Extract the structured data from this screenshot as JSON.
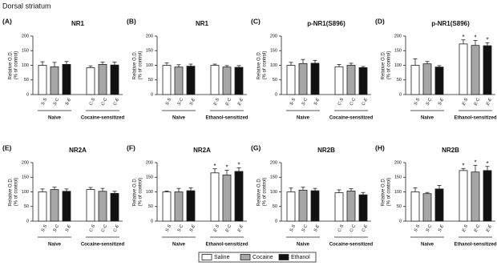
{
  "figure_title": "Dorsal striatum",
  "legend": [
    {
      "name": "Saline",
      "color": "#ffffff"
    },
    {
      "name": "Cocaine",
      "color": "#a6a6a6"
    },
    {
      "name": "Ethanol",
      "color": "#111111"
    }
  ],
  "chart_data": [
    {
      "type": "bar",
      "panel": "(A)",
      "title": "NR1",
      "ylabel": [
        "Relative O.D.",
        "(% of control)"
      ],
      "ylim": [
        0,
        200
      ],
      "yticks": [
        0,
        50,
        100,
        150,
        200
      ],
      "categories": [
        "S-S",
        "S-C",
        "S-E",
        "C-S",
        "C-C",
        "C-E"
      ],
      "groups": [
        "Naive",
        "Cocaine-sensitized"
      ],
      "values": [
        100,
        95,
        103,
        92,
        103,
        101
      ],
      "errors": [
        12,
        15,
        10,
        6,
        8,
        10
      ],
      "annotations": []
    },
    {
      "type": "bar",
      "panel": "(B)",
      "title": "NR1",
      "ylabel": [
        "Relative O.D.",
        "(% of control)"
      ],
      "ylim": [
        0,
        200
      ],
      "yticks": [
        0,
        50,
        100,
        150,
        200
      ],
      "categories": [
        "S-S",
        "S-C",
        "S-E",
        "E-S",
        "E-C",
        "E-E"
      ],
      "groups": [
        "Naive",
        "Ethanol-sensitized"
      ],
      "values": [
        100,
        94,
        97,
        100,
        94,
        93
      ],
      "errors": [
        8,
        8,
        7,
        4,
        5,
        6
      ],
      "annotations": []
    },
    {
      "type": "bar",
      "panel": "(C)",
      "title": "p-NR1(S896)",
      "ylabel": [
        "Relative O.D.",
        "(% of control)"
      ],
      "ylim": [
        0,
        200
      ],
      "yticks": [
        0,
        50,
        100,
        150,
        200
      ],
      "categories": [
        "S-S",
        "S-C",
        "S-E",
        "C-S",
        "C-C",
        "C-E"
      ],
      "groups": [
        "Naive",
        "Cocaine-sensitized"
      ],
      "values": [
        100,
        106,
        107,
        95,
        100,
        92
      ],
      "errors": [
        10,
        14,
        10,
        8,
        7,
        4
      ],
      "annotations": []
    },
    {
      "type": "bar",
      "panel": "(D)",
      "title": "p-NR1(S896)",
      "ylabel": [
        "Relative O.D.",
        "(% of control)"
      ],
      "ylim": [
        0,
        200
      ],
      "yticks": [
        0,
        50,
        100,
        150,
        200
      ],
      "categories": [
        "S-S",
        "S-C",
        "S-E",
        "E-S",
        "E-C",
        "E-E"
      ],
      "groups": [
        "Naive",
        "Ethanol-sensitized"
      ],
      "values": [
        100,
        105,
        94,
        173,
        168,
        167
      ],
      "errors": [
        22,
        8,
        5,
        14,
        17,
        10
      ],
      "annotations": [
        {
          "category": "E-S",
          "text": "*"
        },
        {
          "category": "E-C",
          "text": "*"
        },
        {
          "category": "E-E",
          "text": "*"
        }
      ]
    },
    {
      "type": "bar",
      "panel": "(E)",
      "title": "NR2A",
      "ylabel": [
        "Relative O.D.",
        "(% of control)"
      ],
      "ylim": [
        0,
        200
      ],
      "yticks": [
        0,
        50,
        100,
        150,
        200
      ],
      "categories": [
        "S-S",
        "S-C",
        "S-E",
        "C-S",
        "C-C",
        "C-E"
      ],
      "groups": [
        "Naive",
        "Cocaine-sensitized"
      ],
      "values": [
        100,
        108,
        102,
        108,
        102,
        95
      ],
      "errors": [
        10,
        8,
        8,
        7,
        10,
        7
      ],
      "annotations": []
    },
    {
      "type": "bar",
      "panel": "(F)",
      "title": "NR2A",
      "ylabel": [
        "Relative O.D.",
        "(% of control)"
      ],
      "ylim": [
        0,
        200
      ],
      "yticks": [
        0,
        50,
        100,
        150,
        200
      ],
      "categories": [
        "S-S",
        "S-C",
        "S-E",
        "E-S",
        "E-C",
        "E-E"
      ],
      "groups": [
        "Naive",
        "Ethanol-sensitized"
      ],
      "values": [
        100,
        100,
        104,
        165,
        158,
        170
      ],
      "errors": [
        3,
        12,
        10,
        14,
        16,
        12
      ],
      "annotations": [
        {
          "category": "E-S",
          "text": "*"
        },
        {
          "category": "E-C",
          "text": "*"
        },
        {
          "category": "E-E",
          "text": "*"
        }
      ]
    },
    {
      "type": "bar",
      "panel": "(G)",
      "title": "NR2B",
      "ylabel": [
        "Relative O.D.",
        "(% of control)"
      ],
      "ylim": [
        0,
        200
      ],
      "yticks": [
        0,
        50,
        100,
        150,
        200
      ],
      "categories": [
        "S-S",
        "S-C",
        "S-E",
        "C-S",
        "C-C",
        "C-E"
      ],
      "groups": [
        "Naive",
        "Cocaine-sensitized"
      ],
      "values": [
        100,
        106,
        104,
        97,
        103,
        90
      ],
      "errors": [
        13,
        10,
        8,
        10,
        8,
        8
      ],
      "annotations": []
    },
    {
      "type": "bar",
      "panel": "(H)",
      "title": "NR2B",
      "ylabel": [
        "Relative O.D.",
        "(% of control)"
      ],
      "ylim": [
        0,
        200
      ],
      "yticks": [
        0,
        50,
        100,
        150,
        200
      ],
      "categories": [
        "S-S",
        "S-C",
        "S-E",
        "E-S",
        "E-C",
        "E-E"
      ],
      "groups": [
        "Naive",
        "Ethanol-sensitized"
      ],
      "values": [
        100,
        94,
        110,
        173,
        168,
        173
      ],
      "errors": [
        14,
        4,
        12,
        7,
        23,
        14
      ],
      "annotations": [
        {
          "category": "E-S",
          "text": "*"
        },
        {
          "category": "E-C",
          "text": "*"
        },
        {
          "category": "E-E",
          "text": "*"
        }
      ]
    }
  ]
}
